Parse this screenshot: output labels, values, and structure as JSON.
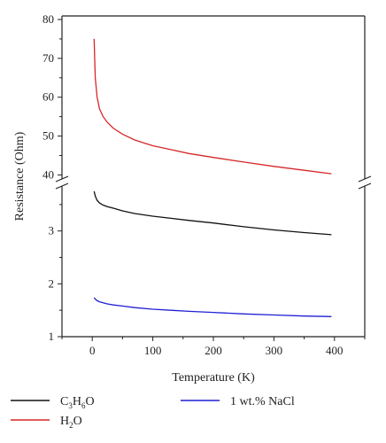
{
  "chart_data": {
    "type": "line",
    "title": "",
    "xlabel": "Temperature (K)",
    "ylabel": "Resistance (Ohm)",
    "xlim": [
      -50,
      450
    ],
    "x_ticks": [
      0,
      100,
      200,
      300,
      400
    ],
    "broken_y_axis": true,
    "upper_panel": {
      "ylim": [
        38.5,
        80
      ],
      "y_ticks": [
        40,
        50,
        60,
        70,
        80
      ]
    },
    "lower_panel": {
      "ylim": [
        1,
        3.9
      ],
      "y_ticks": [
        1,
        2,
        3
      ]
    },
    "series": [
      {
        "name": "H2O",
        "label_parts": [
          "H",
          "2",
          "O"
        ],
        "color": "#d62728",
        "panel": "upper",
        "x": [
          3,
          5,
          8,
          12,
          18,
          25,
          35,
          50,
          70,
          100,
          130,
          160,
          200,
          250,
          300,
          350,
          395
        ],
        "y": [
          75,
          65,
          60,
          57,
          55,
          53.5,
          52,
          50.5,
          49,
          47.5,
          46.5,
          45.5,
          44.5,
          43.3,
          42.2,
          41.2,
          40.3
        ]
      },
      {
        "name": "C3H6O",
        "label_parts": [
          "C",
          "3",
          "H",
          "6",
          "O"
        ],
        "color": "#111111",
        "panel": "lower",
        "x": [
          3,
          5,
          8,
          12,
          18,
          25,
          35,
          50,
          70,
          100,
          130,
          160,
          200,
          250,
          300,
          350,
          395
        ],
        "y": [
          3.75,
          3.66,
          3.58,
          3.53,
          3.49,
          3.46,
          3.43,
          3.38,
          3.33,
          3.28,
          3.24,
          3.2,
          3.15,
          3.08,
          3.02,
          2.97,
          2.93
        ]
      },
      {
        "name": "1 wt.% NaCl",
        "label_parts": [
          "1 wt.% NaCl"
        ],
        "color": "#1f1fd6",
        "panel": "lower",
        "x": [
          3,
          5,
          8,
          12,
          18,
          25,
          35,
          50,
          70,
          100,
          130,
          160,
          200,
          250,
          300,
          350,
          395
        ],
        "y": [
          1.74,
          1.71,
          1.68,
          1.66,
          1.64,
          1.62,
          1.6,
          1.58,
          1.55,
          1.52,
          1.5,
          1.48,
          1.46,
          1.43,
          1.41,
          1.39,
          1.38
        ]
      }
    ],
    "legend_position": "below"
  }
}
